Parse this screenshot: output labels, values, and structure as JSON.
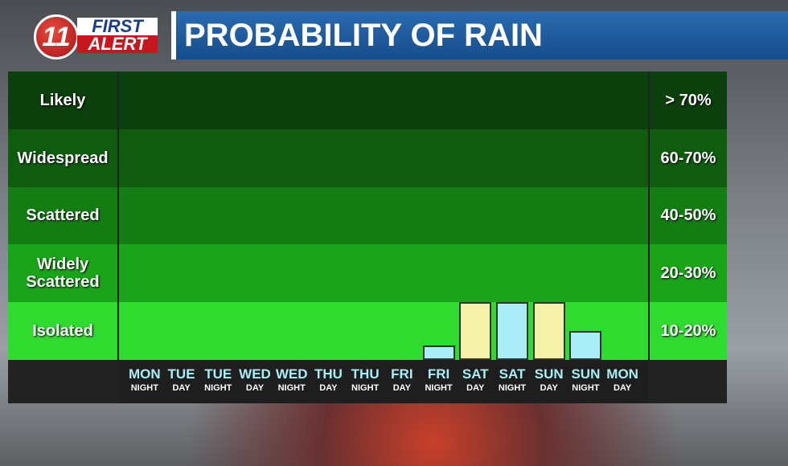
{
  "chart_data": {
    "type": "bar",
    "title": "PROBABILITY OF RAIN",
    "logo": {
      "number": "11",
      "line1": "FIRST",
      "line2": "ALERT"
    },
    "bands": [
      {
        "name": "Likely",
        "range": "> 70%",
        "color": "#0b3f0b"
      },
      {
        "name": "Widespread",
        "range": "60-70%",
        "color": "#0f5c0f"
      },
      {
        "name": "Scattered",
        "range": "40-50%",
        "color": "#137c13"
      },
      {
        "name": "Widely Scattered",
        "range": "20-30%",
        "color": "#1aa41a"
      },
      {
        "name": "Isolated",
        "range": "10-20%",
        "color": "#2fdb2f"
      }
    ],
    "ylim": [
      10,
      20
    ],
    "categories": [
      "MON",
      "TUE",
      "TUE",
      "WED",
      "WED",
      "THU",
      "THU",
      "FRI",
      "FRI",
      "SAT",
      "SAT",
      "SUN",
      "SUN",
      "MON"
    ],
    "periods": [
      "NIGHT",
      "DAY",
      "NIGHT",
      "DAY",
      "NIGHT",
      "DAY",
      "NIGHT",
      "DAY",
      "NIGHT",
      "DAY",
      "NIGHT",
      "DAY",
      "NIGHT",
      "DAY"
    ],
    "values": [
      null,
      null,
      null,
      null,
      null,
      null,
      null,
      null,
      12.5,
      20,
      20,
      20,
      15,
      null
    ],
    "colors": [
      null,
      null,
      null,
      null,
      null,
      null,
      null,
      null,
      "#a9eef7",
      "#f5f1a9",
      "#a9eef7",
      "#f5f1a9",
      "#a9eef7",
      null
    ]
  }
}
